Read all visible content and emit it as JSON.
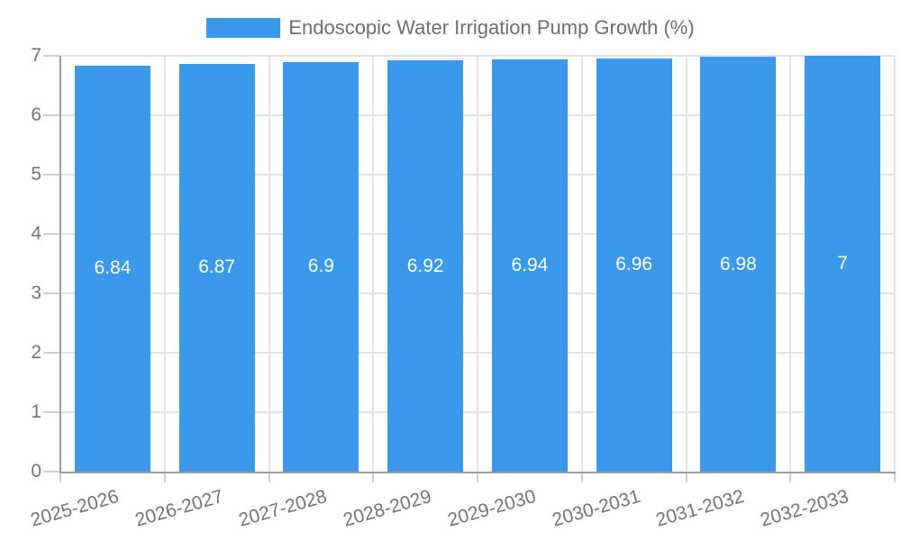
{
  "chart_data": {
    "type": "bar",
    "title": "Endoscopic Water Irrigation Pump Growth (%)",
    "categories": [
      "2025-2026",
      "2026-2027",
      "2027-2028",
      "2028-2029",
      "2029-2030",
      "2030-2031",
      "2031-2032",
      "2032-2033"
    ],
    "values": [
      6.84,
      6.87,
      6.9,
      6.92,
      6.94,
      6.96,
      6.98,
      7
    ],
    "bar_labels": [
      "6.84",
      "6.87",
      "6.9",
      "6.92",
      "6.94",
      "6.96",
      "6.98",
      "7"
    ],
    "xlabel": "",
    "ylabel": "",
    "ylim": [
      0,
      7
    ],
    "yticks": [
      0,
      1,
      2,
      3,
      4,
      5,
      6,
      7
    ],
    "ytick_labels": [
      "0",
      "1",
      "2",
      "3",
      "4",
      "5",
      "6",
      "7"
    ],
    "grid": true,
    "legend_position": "top-center",
    "colors": {
      "bar": "#3B99EC",
      "bar_label_text": "#FFFFFF",
      "axis_text": "#757575",
      "title_text": "#6E6E6E",
      "gridline": "#E3E3E3",
      "axis_line": "#9E9E9E",
      "tick_mark": "#CFCFCF",
      "background": "#FFFFFF"
    }
  }
}
